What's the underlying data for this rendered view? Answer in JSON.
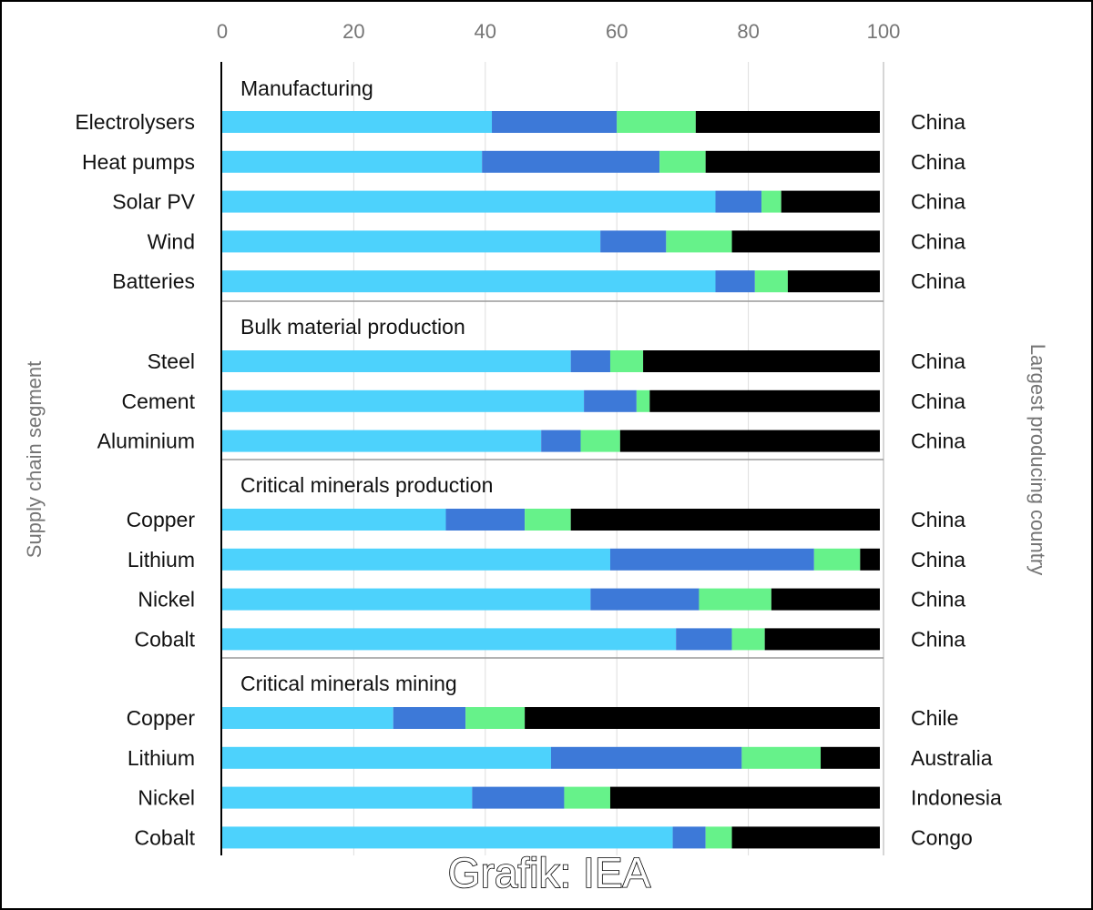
{
  "chart_data": {
    "type": "bar",
    "stacked": true,
    "orientation": "horizontal",
    "xlim": [
      0,
      100
    ],
    "xticks": [
      "0",
      "20",
      "40",
      "60",
      "80",
      "100"
    ],
    "ylabel": "Supply chain segment",
    "y2label": "Largest producing country",
    "grid": true,
    "colors": [
      "#4dd2fc",
      "#3d79d8",
      "#66f28a",
      "#000000"
    ],
    "watermark": "Grafik: IEA",
    "groups": [
      {
        "name": "Manufacturing",
        "rows": [
          {
            "label": "Electrolysers",
            "country": "China",
            "values": [
              41,
              19,
              12,
              28
            ]
          },
          {
            "label": "Heat pumps",
            "country": "China",
            "values": [
              39.5,
              27,
              7,
              26.5
            ]
          },
          {
            "label": "Solar PV",
            "country": "China",
            "values": [
              75,
              7,
              3,
              15
            ]
          },
          {
            "label": "Wind",
            "country": "China",
            "values": [
              57.5,
              10,
              10,
              22.5
            ]
          },
          {
            "label": "Batteries",
            "country": "China",
            "values": [
              75,
              6,
              5,
              14
            ]
          }
        ]
      },
      {
        "name": "Bulk material production",
        "rows": [
          {
            "label": "Steel",
            "country": "China",
            "values": [
              53,
              6,
              5,
              36
            ]
          },
          {
            "label": "Cement",
            "country": "China",
            "values": [
              55,
              8,
              2,
              35
            ]
          },
          {
            "label": "Aluminium",
            "country": "China",
            "values": [
              48.5,
              6,
              6,
              39.5
            ]
          }
        ]
      },
      {
        "name": "Critical minerals production",
        "rows": [
          {
            "label": "Copper",
            "country": "China",
            "values": [
              34,
              12,
              7,
              47
            ]
          },
          {
            "label": "Lithium",
            "country": "China",
            "values": [
              59,
              31,
              7,
              3
            ]
          },
          {
            "label": "Nickel",
            "country": "China",
            "values": [
              56,
              16.5,
              11,
              16.5
            ]
          },
          {
            "label": "Cobalt",
            "country": "China",
            "values": [
              69,
              8.5,
              5,
              17.5
            ]
          }
        ]
      },
      {
        "name": "Critical minerals mining",
        "rows": [
          {
            "label": "Copper",
            "country": "Chile",
            "values": [
              26,
              11,
              9,
              54
            ]
          },
          {
            "label": "Lithium",
            "country": "Australia",
            "values": [
              50,
              29,
              12,
              9
            ]
          },
          {
            "label": "Nickel",
            "country": "Indonesia",
            "values": [
              38,
              14,
              7,
              41
            ]
          },
          {
            "label": "Cobalt",
            "country": "Congo",
            "values": [
              68.5,
              5,
              4,
              22.5
            ]
          }
        ]
      }
    ]
  }
}
